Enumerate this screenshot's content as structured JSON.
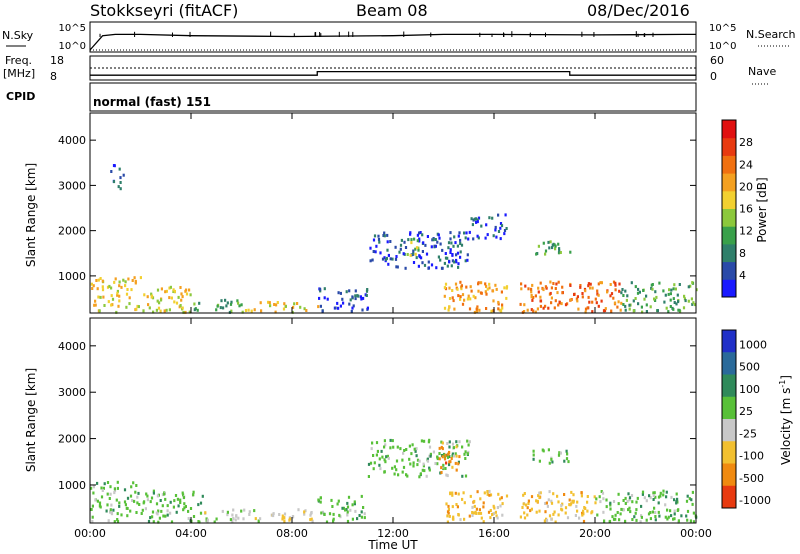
{
  "header": {
    "station": "Stokkseyri (fitACF)",
    "beam": "Beam 08",
    "date": "08/Dec/2016"
  },
  "strips": {
    "nsky_label": "N.Sky",
    "nsky_top": "10^5",
    "nsky_bottom": "10^0",
    "nsearch_top": "10^5",
    "nsearch_bottom": "10^0",
    "nsearch_label": "N.Search",
    "freq_label_1": "Freq.",
    "freq_label_2": "[MHz]",
    "freq_top": "18",
    "freq_bottom": "8",
    "nave_top": "60",
    "nave_bottom": "0",
    "nave_label": "Nave",
    "cpid_label": "CPID",
    "cpid_value": "normal (fast) 151"
  },
  "axes": {
    "ylabel": "Slant Range [km]",
    "xlabel": "Time UT",
    "yticks": [
      "1000",
      "2000",
      "3000",
      "4000"
    ],
    "xticks": [
      "00:00",
      "04:00",
      "08:00",
      "12:00",
      "16:00",
      "20:00",
      "00:00"
    ]
  },
  "power_scale": {
    "label": "Power [dB]",
    "ticks": [
      "4",
      "8",
      "12",
      "16",
      "20",
      "24",
      "28"
    ],
    "colors": [
      "#1a1aff",
      "#2a4aa8",
      "#2f7f6a",
      "#39a04a",
      "#8cc83c",
      "#f2d030",
      "#f4a020",
      "#f07010",
      "#e83a10",
      "#e01010"
    ]
  },
  "velocity_scale": {
    "label": "Velocity [m s^-1]",
    "ticks": [
      "1000",
      "500",
      "100",
      "25",
      "-25",
      "-100",
      "-500",
      "-1000"
    ],
    "colors": [
      "#2030c8",
      "#2a6a9a",
      "#2f8a5a",
      "#58c038",
      "#c8c8c8",
      "#f2c030",
      "#f08a10",
      "#e83a10"
    ]
  },
  "chart_data": [
    {
      "type": "line",
      "title": "N.Sky / N.Search",
      "x_range_hours": [
        0,
        24
      ],
      "y_scale": "log",
      "ylim": [
        "10^0",
        "10^5"
      ],
      "series": [
        {
          "name": "N.Sky",
          "style": "solid",
          "x": [
            0,
            0.5,
            1,
            2,
            4,
            8,
            12,
            14,
            16,
            20,
            23.5,
            24
          ],
          "y_level": [
            0,
            0.55,
            0.6,
            0.6,
            0.55,
            0.52,
            0.55,
            0.6,
            0.6,
            0.58,
            0.6,
            0.6
          ]
        },
        {
          "name": "N.Search",
          "style": "dotted",
          "x": [
            0,
            24
          ],
          "y_level": [
            0,
            0
          ]
        }
      ]
    },
    {
      "type": "line",
      "title": "Freq. / Nave",
      "x_range_hours": [
        0,
        24
      ],
      "series": [
        {
          "name": "Freq. [MHz]",
          "style": "solid",
          "x": [
            0,
            9,
            9,
            19,
            19,
            24
          ],
          "y": [
            10,
            10,
            11.5,
            11.5,
            10,
            10
          ]
        },
        {
          "name": "Nave",
          "style": "dotted",
          "x": [
            0,
            24
          ],
          "y": [
            40,
            40
          ]
        }
      ],
      "ylim_left": [
        8,
        18
      ],
      "ylim_right": [
        0,
        60
      ]
    },
    {
      "type": "heatmap",
      "title": "Power [dB]",
      "xlabel": "Time UT",
      "ylabel": "Slant Range [km]",
      "xlim_hours": [
        0,
        24
      ],
      "ylim": [
        180,
        4600
      ],
      "regions": [
        {
          "t0": 0,
          "t1": 2.0,
          "r0": 200,
          "r1": 1000,
          "power": 18
        },
        {
          "t0": 2.0,
          "t1": 4.0,
          "r0": 200,
          "r1": 800,
          "power": 16
        },
        {
          "t0": 4.0,
          "t1": 6.0,
          "r0": 200,
          "r1": 500,
          "power": 12
        },
        {
          "t0": 6.0,
          "t1": 9.0,
          "r0": 200,
          "r1": 450,
          "power": 18
        },
        {
          "t0": 9.0,
          "t1": 11.0,
          "r0": 200,
          "r1": 800,
          "power": 6
        },
        {
          "t0": 0.8,
          "t1": 1.3,
          "r0": 2900,
          "r1": 3500,
          "power": 6
        },
        {
          "t0": 11.0,
          "t1": 15.0,
          "r0": 1200,
          "r1": 2000,
          "power": 6
        },
        {
          "t0": 12.5,
          "t1": 13.0,
          "r0": 1400,
          "r1": 1900,
          "power": 14
        },
        {
          "t0": 14.0,
          "t1": 16.5,
          "r0": 200,
          "r1": 900,
          "power": 20
        },
        {
          "t0": 15.0,
          "t1": 16.5,
          "r0": 1800,
          "r1": 2400,
          "power": 6
        },
        {
          "t0": 17.5,
          "t1": 19.0,
          "r0": 1500,
          "r1": 1800,
          "power": 12
        },
        {
          "t0": 17.0,
          "t1": 21.0,
          "r0": 200,
          "r1": 900,
          "power": 22
        },
        {
          "t0": 21.0,
          "t1": 24.0,
          "r0": 200,
          "r1": 900,
          "power": 12
        }
      ]
    },
    {
      "type": "heatmap",
      "title": "Velocity [m s^-1]",
      "xlabel": "Time UT",
      "ylabel": "Slant Range [km]",
      "xlim_hours": [
        0,
        24
      ],
      "ylim": [
        180,
        4600
      ],
      "regions": [
        {
          "t0": 0,
          "t1": 2.0,
          "r0": 200,
          "r1": 1100,
          "velocity": 50
        },
        {
          "t0": 2.0,
          "t1": 4.5,
          "r0": 200,
          "r1": 900,
          "velocity": 10
        },
        {
          "t0": 4.5,
          "t1": 9.0,
          "r0": 200,
          "r1": 500,
          "velocity": -10
        },
        {
          "t0": 9.0,
          "t1": 11.0,
          "r0": 200,
          "r1": 800,
          "velocity": 50
        },
        {
          "t0": 11.0,
          "t1": 15.0,
          "r0": 1200,
          "r1": 2000,
          "velocity": 0
        },
        {
          "t0": 13.8,
          "t1": 14.6,
          "r0": 1300,
          "r1": 2000,
          "velocity": -400
        },
        {
          "t0": 14.0,
          "t1": 16.5,
          "r0": 200,
          "r1": 900,
          "velocity": -150
        },
        {
          "t0": 17.0,
          "t1": 20.0,
          "r0": 200,
          "r1": 900,
          "velocity": -150
        },
        {
          "t0": 17.5,
          "t1": 19.0,
          "r0": 1500,
          "r1": 1800,
          "velocity": 0
        },
        {
          "t0": 20.0,
          "t1": 24.0,
          "r0": 200,
          "r1": 900,
          "velocity": 10
        }
      ]
    }
  ]
}
